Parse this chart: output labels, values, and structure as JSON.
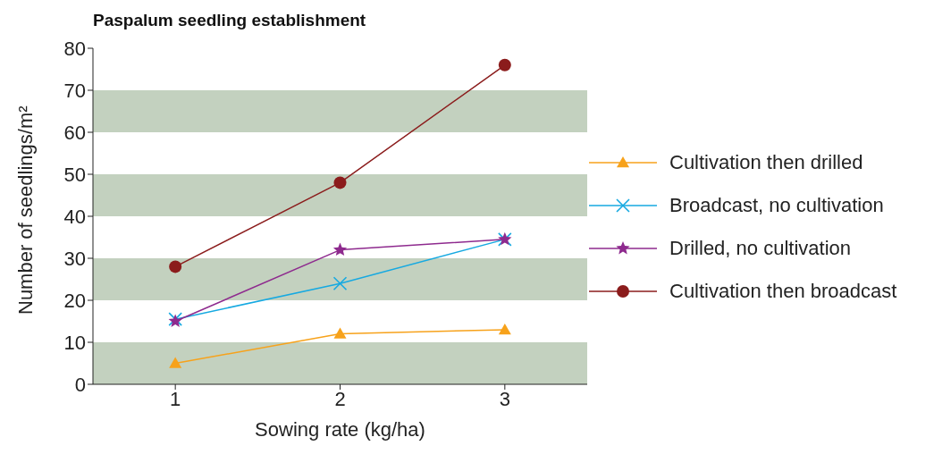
{
  "chart_data": {
    "type": "line",
    "title": "Paspalum seedling establishment",
    "xlabel": "Sowing rate (kg/ha)",
    "ylabel": "Number of seedlings/m²",
    "categories": [
      "1",
      "2",
      "3"
    ],
    "series": [
      {
        "name": "Cultivation then drilled",
        "color": "#f7a21b",
        "marker": "triangle",
        "values": [
          5,
          12,
          13
        ]
      },
      {
        "name": "Broadcast, no cultivation",
        "color": "#16a9e1",
        "marker": "cross",
        "values": [
          15.5,
          24,
          34.5
        ]
      },
      {
        "name": "Drilled, no cultivation",
        "color": "#8e2a8e",
        "marker": "star",
        "values": [
          15,
          32,
          34.5
        ]
      },
      {
        "name": "Cultivation then broadcast",
        "color": "#8b1c1c",
        "marker": "circle",
        "values": [
          28,
          48,
          76
        ]
      }
    ],
    "ylim": [
      0,
      80
    ],
    "yticks": [
      0,
      10,
      20,
      30,
      40,
      50,
      60,
      70,
      80
    ],
    "bands": [
      {
        "axis": "y",
        "from": 0,
        "to": 10,
        "color": "#c3d1bf"
      },
      {
        "axis": "y",
        "from": 20,
        "to": 30,
        "color": "#c3d1bf"
      },
      {
        "axis": "y",
        "from": 40,
        "to": 50,
        "color": "#c3d1bf"
      },
      {
        "axis": "y",
        "from": 60,
        "to": 70,
        "color": "#c3d1bf"
      }
    ],
    "legend": "right",
    "line_style": "solid"
  }
}
